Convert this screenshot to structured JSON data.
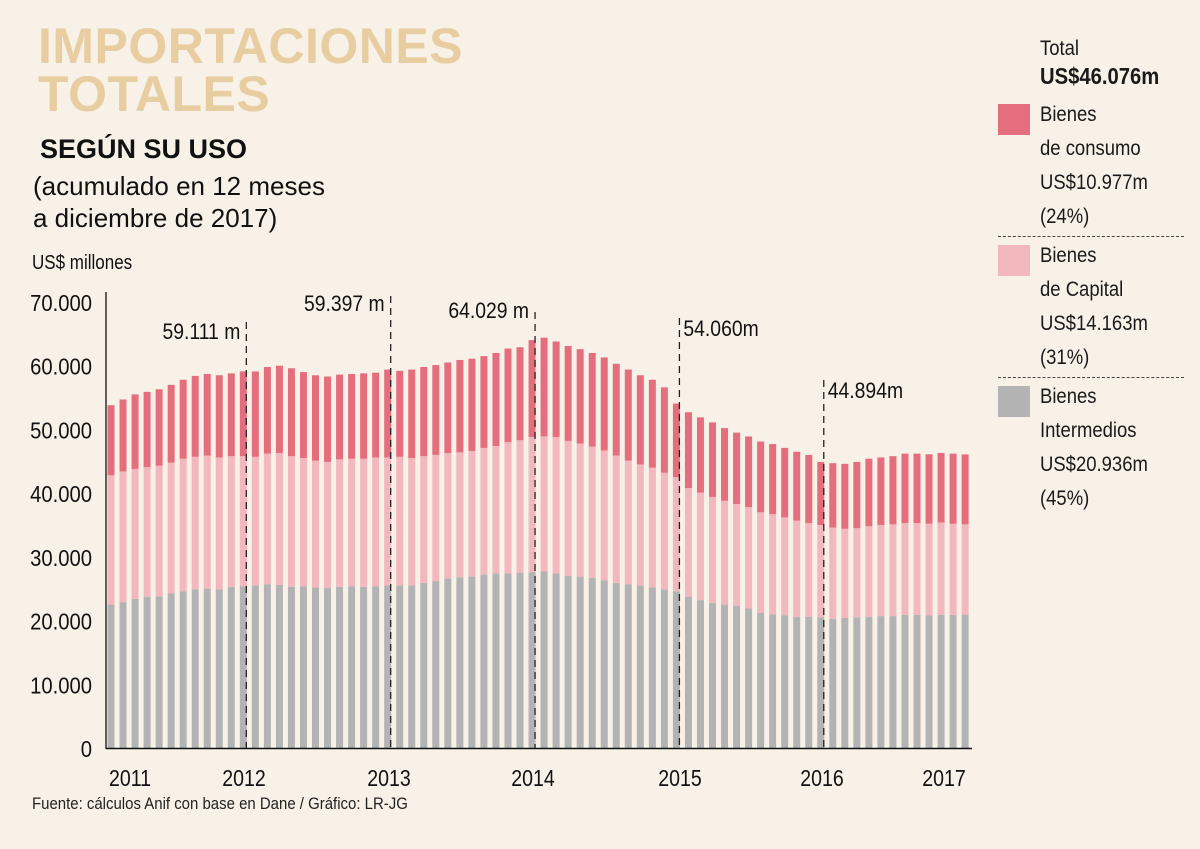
{
  "title_line1": "IMPORTACIONES",
  "title_line2": "TOTALES",
  "subtitle": "SEGÚN SU USO",
  "subnote_line1": "(acumulado en 12 meses",
  "subnote_line2": "a diciembre de 2017)",
  "source": "Fuente: cálculos Anif con base en Dane / Gráfico: LR-JG",
  "legend": {
    "total_label": "Total",
    "total_value": "US$46.076m",
    "items": [
      {
        "line1": "Bienes",
        "line2": "de consumo",
        "value": "US$10.977m",
        "pct": "(24%)",
        "color": "#e56e7e"
      },
      {
        "line1": "Bienes",
        "line2": "de Capital",
        "value": "US$14.163m",
        "pct": "(31%)",
        "color": "#f3b8bd"
      },
      {
        "line1": "Bienes",
        "line2": "Intermedios",
        "value": "US$20.936m",
        "pct": "(45%)",
        "color": "#b3b3b3"
      }
    ]
  },
  "chart_data": {
    "type": "bar",
    "stacked": true,
    "title": "Importaciones totales según su uso",
    "ylabel": "US$ millones",
    "xlabel": "",
    "ylim": [
      0,
      70000
    ],
    "yticks": [
      0,
      10000,
      20000,
      30000,
      40000,
      50000,
      60000,
      70000
    ],
    "ytick_labels": [
      "0",
      "10.000",
      "20.000",
      "30.000",
      "40.000",
      "50.000",
      "60.000",
      "70.000"
    ],
    "xtick_labels": [
      "2011",
      "2012",
      "2013",
      "2014",
      "2015",
      "2016",
      "2017"
    ],
    "xtick_bar_index": [
      0,
      11,
      23,
      35,
      47,
      59,
      71
    ],
    "grid": false,
    "legend_position": "right",
    "annotations": [
      {
        "bar_index": 11,
        "text": "59.111 m"
      },
      {
        "bar_index": 23,
        "text": "59.397 m"
      },
      {
        "bar_index": 35,
        "text": "64.029 m"
      },
      {
        "bar_index": 47,
        "text": "54.060m"
      },
      {
        "bar_index": 59,
        "text": "44.894m"
      }
    ],
    "series": [
      {
        "name": "Bienes Intermedios",
        "color": "#b3b3b3",
        "values": [
          22500,
          22900,
          23400,
          23700,
          23800,
          24300,
          24600,
          24900,
          25000,
          24900,
          25300,
          25400,
          25500,
          25700,
          25600,
          25300,
          25400,
          25200,
          25100,
          25300,
          25400,
          25300,
          25400,
          25500,
          25500,
          25500,
          25900,
          26200,
          26600,
          26800,
          26900,
          27200,
          27400,
          27400,
          27500,
          27600,
          27700,
          27400,
          27000,
          26900,
          26700,
          26300,
          25900,
          25700,
          25500,
          25200,
          24900,
          24600,
          23700,
          23200,
          22800,
          22500,
          22300,
          21900,
          21200,
          21000,
          20800,
          20600,
          20600,
          20500,
          20300,
          20400,
          20500,
          20600,
          20700,
          20700,
          20900,
          20900,
          20800,
          20900,
          20900,
          20936
        ]
      },
      {
        "name": "Bienes de Capital",
        "color": "#f3b8bd",
        "values": [
          20300,
          20500,
          20400,
          20400,
          20500,
          20500,
          20800,
          20800,
          20900,
          20700,
          20500,
          20400,
          20200,
          20500,
          20700,
          20500,
          20100,
          19900,
          19800,
          20000,
          20000,
          20100,
          20200,
          20100,
          20200,
          20000,
          19900,
          19800,
          19700,
          19600,
          19700,
          19900,
          20000,
          20600,
          20800,
          21200,
          21200,
          21400,
          21200,
          20900,
          20600,
          20400,
          20000,
          19400,
          19000,
          18800,
          18300,
          17900,
          17100,
          16900,
          16600,
          16300,
          16000,
          15900,
          15800,
          15700,
          15400,
          15100,
          14700,
          14500,
          14300,
          14000,
          14000,
          14200,
          14300,
          14400,
          14400,
          14400,
          14400,
          14500,
          14300,
          14163
        ]
      },
      {
        "name": "Bienes de consumo",
        "color": "#e56e7e",
        "values": [
          11000,
          11300,
          11700,
          11800,
          12000,
          12200,
          12400,
          12700,
          12800,
          12900,
          13000,
          13311,
          13400,
          13600,
          13700,
          13800,
          13500,
          13400,
          13400,
          13300,
          13300,
          13400,
          13300,
          13797,
          13500,
          13900,
          14000,
          14100,
          14200,
          14500,
          14500,
          14400,
          14600,
          14700,
          14600,
          15229,
          15500,
          15000,
          14900,
          14800,
          14700,
          14600,
          14400,
          14300,
          14000,
          13800,
          13400,
          11560,
          11900,
          11800,
          11700,
          11400,
          11200,
          11100,
          11100,
          11000,
          10900,
          10800,
          10700,
          9894,
          10100,
          10200,
          10400,
          10600,
          10600,
          10700,
          10900,
          10900,
          10900,
          10900,
          11000,
          10977
        ]
      }
    ]
  }
}
